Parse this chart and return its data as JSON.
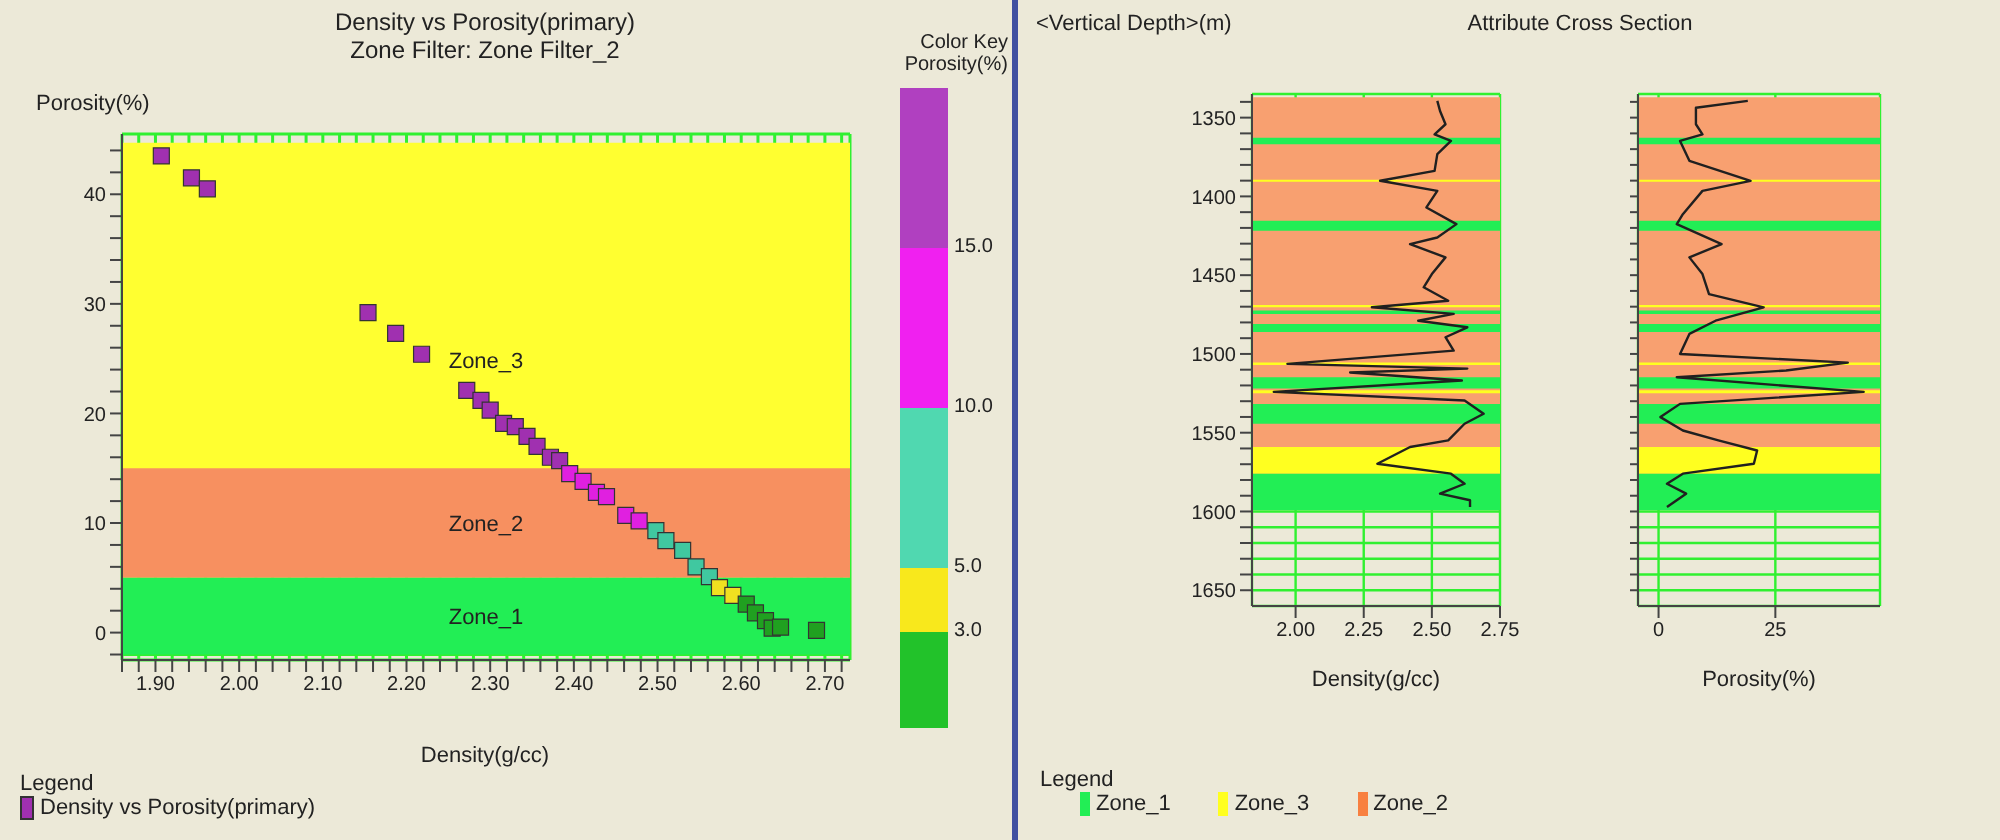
{
  "chart_data": [
    {
      "type": "scatter",
      "title": "Density vs Porosity(primary)",
      "subtitle": "Zone Filter: Zone Filter_2",
      "xlabel": "Density(g/cc)",
      "ylabel": "Porosity(%)",
      "clabel": "Porosity(%)",
      "legend_title": "Legend",
      "annotations": [
        "Color Key"
      ],
      "xlim": [
        1.86,
        2.73
      ],
      "ylim": [
        -2.5,
        45.5
      ],
      "xticks": [
        {
          "value": 1.86,
          "label": null
        },
        {
          "value": 1.88,
          "label": null
        },
        {
          "value": 1.9,
          "label": "1.90"
        },
        {
          "value": 1.92,
          "label": null
        },
        {
          "value": 1.94,
          "label": null
        },
        {
          "value": 1.96,
          "label": null
        },
        {
          "value": 1.98,
          "label": null
        },
        {
          "value": 2.0,
          "label": "2.00"
        },
        {
          "value": 2.02,
          "label": null
        },
        {
          "value": 2.04,
          "label": null
        },
        {
          "value": 2.06,
          "label": null
        },
        {
          "value": 2.08,
          "label": null
        },
        {
          "value": 2.1,
          "label": "2.10"
        },
        {
          "value": 2.12,
          "label": null
        },
        {
          "value": 2.14,
          "label": null
        },
        {
          "value": 2.16,
          "label": null
        },
        {
          "value": 2.18,
          "label": null
        },
        {
          "value": 2.2,
          "label": "2.20"
        },
        {
          "value": 2.22,
          "label": null
        },
        {
          "value": 2.24,
          "label": null
        },
        {
          "value": 2.26,
          "label": null
        },
        {
          "value": 2.28,
          "label": null
        },
        {
          "value": 2.3,
          "label": "2.30"
        },
        {
          "value": 2.32,
          "label": null
        },
        {
          "value": 2.34,
          "label": null
        },
        {
          "value": 2.36,
          "label": null
        },
        {
          "value": 2.38,
          "label": null
        },
        {
          "value": 2.4,
          "label": "2.40"
        },
        {
          "value": 2.42,
          "label": null
        },
        {
          "value": 2.44,
          "label": null
        },
        {
          "value": 2.46,
          "label": null
        },
        {
          "value": 2.48,
          "label": null
        },
        {
          "value": 2.5,
          "label": "2.50"
        },
        {
          "value": 2.52,
          "label": null
        },
        {
          "value": 2.54,
          "label": null
        },
        {
          "value": 2.56,
          "label": null
        },
        {
          "value": 2.58,
          "label": null
        },
        {
          "value": 2.6,
          "label": "2.60"
        },
        {
          "value": 2.62,
          "label": null
        },
        {
          "value": 2.64,
          "label": null
        },
        {
          "value": 2.66,
          "label": null
        },
        {
          "value": 2.68,
          "label": null
        },
        {
          "value": 2.7,
          "label": "2.70"
        },
        {
          "value": 2.72,
          "label": null
        }
      ],
      "yticks": [
        {
          "value": -2,
          "label": null
        },
        0,
        {
          "value": 2,
          "label": null
        },
        {
          "value": 4,
          "label": null
        },
        {
          "value": 6,
          "label": null
        },
        {
          "value": 8,
          "label": null
        },
        10,
        {
          "value": 12,
          "label": null
        },
        {
          "value": 14,
          "label": null
        },
        {
          "value": 16,
          "label": null
        },
        {
          "value": 18,
          "label": null
        },
        20,
        {
          "value": 22,
          "label": null
        },
        {
          "value": 24,
          "label": null
        },
        {
          "value": 26,
          "label": null
        },
        {
          "value": 28,
          "label": null
        },
        30,
        {
          "value": 32,
          "label": null
        },
        {
          "value": 34,
          "label": null
        },
        {
          "value": 36,
          "label": null
        },
        {
          "value": 38,
          "label": null
        },
        40,
        {
          "value": 42,
          "label": null
        },
        {
          "value": 44,
          "label": null
        }
      ],
      "clim": [
        0,
        20
      ],
      "cticks": [
        {
          "value": 3,
          "label": "3.0"
        },
        {
          "value": 5,
          "label": "5.0"
        },
        {
          "value": 10,
          "label": "10.0"
        },
        {
          "value": 15,
          "label": "15.0"
        }
      ],
      "grid": true,
      "legend": "bottom",
      "marker": "square",
      "bands": [
        {
          "axis": "y",
          "from": 5,
          "to": 44.7,
          "label": "Zone_3",
          "color": "#ffff30"
        },
        {
          "axis": "y",
          "from": 5,
          "to": 15,
          "label": "Zone_2",
          "color": "#f79060"
        },
        {
          "axis": "y",
          "from": -2,
          "to": 5,
          "label": "Zone_1",
          "color": "#22ee55"
        }
      ],
      "series": [
        {
          "name": "Density vs Porosity(primary)",
          "color": "#a030b0",
          "x": [
            1.907,
            1.943,
            1.962,
            2.154,
            2.187,
            2.218,
            2.272,
            2.289,
            2.3,
            2.316,
            2.33,
            2.344,
            2.356,
            2.372,
            2.383,
            2.395,
            2.411,
            2.427,
            2.439,
            2.462,
            2.478,
            2.498,
            2.51,
            2.53,
            2.546,
            2.562,
            2.574,
            2.59,
            2.606,
            2.617,
            2.629,
            2.637,
            2.647,
            2.69
          ],
          "values": [
            43.5,
            41.5,
            40.5,
            29.2,
            27.3,
            25.4,
            22.1,
            21.2,
            20.3,
            19.1,
            18.8,
            17.9,
            17.0,
            16.0,
            15.7,
            14.5,
            13.8,
            12.8,
            12.4,
            10.7,
            10.2,
            9.3,
            8.4,
            7.5,
            6.0,
            5.1,
            4.1,
            3.4,
            2.6,
            1.8,
            1.1,
            0.4,
            0.5,
            0.2
          ],
          "colors": [
            "#a030b0",
            "#a030b0",
            "#a030b0",
            "#a030b0",
            "#a030b0",
            "#a030b0",
            "#a030b0",
            "#a030b0",
            "#a030b0",
            "#a030b0",
            "#a030b0",
            "#a030b0",
            "#a030b0",
            "#a030b0",
            "#a030b0",
            "#e020e0",
            "#e020e0",
            "#e020e0",
            "#e020e0",
            "#e020e0",
            "#e020e0",
            "#40c8a0",
            "#40c8a0",
            "#40c8a0",
            "#40c8a0",
            "#40c8a0",
            "#f0e020",
            "#f0e020",
            "#20a020",
            "#20a020",
            "#20a020",
            "#20a020",
            "#20a020",
            "#20a020"
          ]
        }
      ]
    },
    {
      "type": "line",
      "orientation": "horizontal",
      "title": "Attribute Cross Section",
      "ylabel": "<Vertical Depth>(m)",
      "xlabel": "Density(g/cc)",
      "color": "#202020",
      "grid": true,
      "x": [
        1339.4,
        1345.8,
        1354.2,
        1360.6,
        1364.8,
        1373.2,
        1383.8,
        1390.1,
        1396.5,
        1407.0,
        1417.6,
        1426.1,
        1430.3,
        1438.7,
        1449.3,
        1457.7,
        1466.2,
        1470.4,
        1474.6,
        1478.9,
        1483.1,
        1489.4,
        1497.9,
        1506.3,
        1509.3,
        1511.8,
        1516.9,
        1524.1,
        1529.6,
        1538.0,
        1544.3,
        1554.9,
        1559.1,
        1569.7,
        1576.0,
        1582.4,
        1588.7,
        1592.9,
        1597.2
      ],
      "values": [
        2.52,
        2.53,
        2.55,
        2.51,
        2.57,
        2.52,
        2.51,
        2.31,
        2.52,
        2.48,
        2.59,
        2.52,
        2.42,
        2.55,
        2.5,
        2.47,
        2.56,
        2.28,
        2.58,
        2.45,
        2.63,
        2.55,
        2.58,
        1.97,
        2.63,
        2.2,
        2.61,
        1.92,
        2.62,
        2.69,
        2.62,
        2.56,
        2.42,
        2.3,
        2.57,
        2.62,
        2.53,
        2.64,
        2.64
      ],
      "xlim": [
        1.84,
        2.75
      ],
      "xticks": [
        {
          "value": 2,
          "label": "2.00"
        },
        {
          "value": 2.25,
          "label": "2.25"
        },
        {
          "value": 2.5,
          "label": "2.50"
        },
        {
          "value": 2.75,
          "label": "2.75"
        }
      ],
      "ylim": [
        1660,
        1335
      ],
      "yticks": [
        {
          "value": 1340,
          "label": null
        },
        1350,
        {
          "value": 1360,
          "label": null
        },
        {
          "value": 1370,
          "label": null
        },
        {
          "value": 1380,
          "label": null
        },
        {
          "value": 1390,
          "label": null
        },
        1400,
        {
          "value": 1410,
          "label": null
        },
        {
          "value": 1420,
          "label": null
        },
        {
          "value": 1430,
          "label": null
        },
        {
          "value": 1440,
          "label": null
        },
        1450,
        {
          "value": 1460,
          "label": null
        },
        {
          "value": 1470,
          "label": null
        },
        {
          "value": 1480,
          "label": null
        },
        {
          "value": 1490,
          "label": null
        },
        1500,
        {
          "value": 1510,
          "label": null
        },
        {
          "value": 1520,
          "label": null
        },
        {
          "value": 1530,
          "label": null
        },
        {
          "value": 1540,
          "label": null
        },
        1550,
        {
          "value": 1560,
          "label": null
        },
        {
          "value": 1570,
          "label": null
        },
        {
          "value": 1580,
          "label": null
        },
        {
          "value": 1590,
          "label": null
        },
        1600,
        {
          "value": 1610,
          "label": null
        },
        {
          "value": 1620,
          "label": null
        },
        {
          "value": 1630,
          "label": null
        },
        {
          "value": 1640,
          "label": null
        },
        1650
      ],
      "bands": [
        {
          "axis": "y",
          "from": 1337,
          "to": 1599,
          "color": "#f8a070"
        },
        {
          "axis": "y",
          "from": 1362.7,
          "to": 1366.9,
          "color": "#22ee55"
        },
        {
          "axis": "y",
          "from": 1389.5,
          "to": 1390.7,
          "color": "#ffff20"
        },
        {
          "axis": "y",
          "from": 1415.5,
          "to": 1421.8,
          "color": "#22ee55"
        },
        {
          "axis": "y",
          "from": 1469,
          "to": 1470.4,
          "color": "#ffff20"
        },
        {
          "axis": "y",
          "from": 1472.5,
          "to": 1474.6,
          "color": "#22ee55"
        },
        {
          "axis": "y",
          "from": 1481,
          "to": 1486,
          "color": "#22ee55"
        },
        {
          "axis": "y",
          "from": 1505.5,
          "to": 1507,
          "color": "#ffff20"
        },
        {
          "axis": "y",
          "from": 1514.8,
          "to": 1522,
          "color": "#22ee55"
        },
        {
          "axis": "y",
          "from": 1523,
          "to": 1525,
          "color": "#ffff20"
        },
        {
          "axis": "y",
          "from": 1531.7,
          "to": 1544.3,
          "color": "#22ee55"
        },
        {
          "axis": "y",
          "from": 1559,
          "to": 1576,
          "color": "#ffff20"
        },
        {
          "axis": "y",
          "from": 1576,
          "to": 1599,
          "color": "#22ee55"
        }
      ]
    },
    {
      "type": "line",
      "orientation": "horizontal",
      "xlabel": "Porosity(%)",
      "color": "#202020",
      "grid": true,
      "tick_labels": "x",
      "x": [
        1339.4,
        1343.7,
        1354.2,
        1360.6,
        1364.8,
        1377.4,
        1390.1,
        1396.5,
        1411.3,
        1417.6,
        1430.3,
        1438.7,
        1449.3,
        1462.0,
        1470.4,
        1478.9,
        1487.3,
        1500.0,
        1505.5,
        1510.5,
        1514.8,
        1524.1,
        1531.7,
        1540.1,
        1548.6,
        1554.9,
        1561.3,
        1569.7,
        1576.0,
        1582.4,
        1588.7,
        1597.2
      ],
      "values": [
        19.1,
        8.0,
        8.0,
        9.4,
        4.6,
        6.6,
        19.7,
        9.4,
        5.2,
        3.9,
        13.5,
        6.6,
        9.4,
        10.8,
        22.5,
        12.2,
        6.6,
        4.6,
        40.5,
        27.3,
        3.9,
        43.9,
        4.6,
        0.4,
        5.2,
        12.8,
        21.1,
        20.4,
        5.2,
        1.8,
        5.9,
        1.8
      ],
      "xlim": [
        -4.4,
        47.4
      ],
      "xticks": [
        0,
        25
      ],
      "ylim": [
        1660,
        1335
      ],
      "yticks": [
        {
          "value": 1340,
          "label": null
        },
        1350,
        {
          "value": 1360,
          "label": null
        },
        {
          "value": 1370,
          "label": null
        },
        {
          "value": 1380,
          "label": null
        },
        {
          "value": 1390,
          "label": null
        },
        1400,
        {
          "value": 1410,
          "label": null
        },
        {
          "value": 1420,
          "label": null
        },
        {
          "value": 1430,
          "label": null
        },
        {
          "value": 1440,
          "label": null
        },
        1450,
        {
          "value": 1460,
          "label": null
        },
        {
          "value": 1470,
          "label": null
        },
        {
          "value": 1480,
          "label": null
        },
        {
          "value": 1490,
          "label": null
        },
        1500,
        {
          "value": 1510,
          "label": null
        },
        {
          "value": 1520,
          "label": null
        },
        {
          "value": 1530,
          "label": null
        },
        {
          "value": 1540,
          "label": null
        },
        1550,
        {
          "value": 1560,
          "label": null
        },
        {
          "value": 1570,
          "label": null
        },
        {
          "value": 1580,
          "label": null
        },
        {
          "value": 1590,
          "label": null
        },
        1600,
        {
          "value": 1610,
          "label": null
        },
        {
          "value": 1620,
          "label": null
        },
        {
          "value": 1630,
          "label": null
        },
        {
          "value": 1640,
          "label": null
        },
        1650
      ],
      "bands": [
        {
          "axis": "y",
          "from": 1337,
          "to": 1599,
          "color": "#f8a070"
        },
        {
          "axis": "y",
          "from": 1362.7,
          "to": 1366.9,
          "color": "#22ee55"
        },
        {
          "axis": "y",
          "from": 1389.5,
          "to": 1390.7,
          "color": "#ffff20"
        },
        {
          "axis": "y",
          "from": 1415.5,
          "to": 1421.8,
          "color": "#22ee55"
        },
        {
          "axis": "y",
          "from": 1469,
          "to": 1470.4,
          "color": "#ffff20"
        },
        {
          "axis": "y",
          "from": 1472.5,
          "to": 1474.6,
          "color": "#22ee55"
        },
        {
          "axis": "y",
          "from": 1481,
          "to": 1486,
          "color": "#22ee55"
        },
        {
          "axis": "y",
          "from": 1505.5,
          "to": 1507,
          "color": "#ffff20"
        },
        {
          "axis": "y",
          "from": 1514.8,
          "to": 1522,
          "color": "#22ee55"
        },
        {
          "axis": "y",
          "from": 1523,
          "to": 1525,
          "color": "#ffff20"
        },
        {
          "axis": "y",
          "from": 1531.7,
          "to": 1544.3,
          "color": "#22ee55"
        },
        {
          "axis": "y",
          "from": 1559,
          "to": 1576,
          "color": "#ffff20"
        },
        {
          "axis": "y",
          "from": 1576,
          "to": 1599,
          "color": "#22ee55"
        }
      ]
    },
    {
      "type": "other",
      "title": "Legend",
      "categories": [
        "Zone_1",
        "Zone_3",
        "Zone_2"
      ],
      "colors": [
        "#22ee55",
        "#ffff20",
        "#f88040"
      ]
    }
  ]
}
